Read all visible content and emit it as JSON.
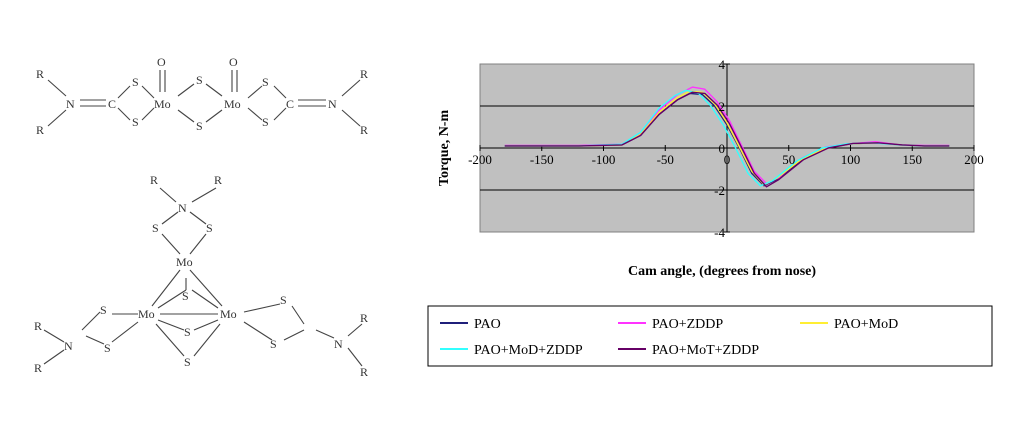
{
  "chemistry": {
    "dimer": {
      "labels": [
        "R",
        "N",
        "C",
        "S",
        "S",
        "Mo",
        "O",
        "S",
        "S",
        "Mo",
        "O",
        "S",
        "S",
        "C",
        "N",
        "R",
        "R",
        "R"
      ]
    },
    "trimer": {
      "labels": [
        "R",
        "R",
        "N",
        "S",
        "S",
        "Mo",
        "S",
        "Mo",
        "Mo",
        "S",
        "S",
        "S",
        "S",
        "N",
        "R",
        "R",
        "S",
        "S",
        "N",
        "R",
        "R"
      ]
    }
  },
  "chart_data": {
    "type": "line",
    "title": "",
    "xlabel": "Cam angle, (degrees from nose)",
    "ylabel": "Torque, N-m",
    "xlim": [
      -200,
      200
    ],
    "ylim": [
      -4,
      4
    ],
    "xticks": [
      -200,
      -150,
      -100,
      -50,
      0,
      50,
      100,
      150,
      200
    ],
    "yticks": [
      -4,
      -2,
      0,
      2,
      4
    ],
    "grid": "horizontal",
    "legend_position": "bottom",
    "series": [
      {
        "name": "PAO",
        "color": "#1f1f7a",
        "points": [
          [
            -180,
            0.1
          ],
          [
            -120,
            0.1
          ],
          [
            -85,
            0.15
          ],
          [
            -70,
            0.6
          ],
          [
            -55,
            1.6
          ],
          [
            -40,
            2.3
          ],
          [
            -30,
            2.6
          ],
          [
            -20,
            2.55
          ],
          [
            -10,
            2.0
          ],
          [
            0,
            1.1
          ],
          [
            10,
            0.0
          ],
          [
            20,
            -1.2
          ],
          [
            30,
            -1.8
          ],
          [
            40,
            -1.5
          ],
          [
            60,
            -0.6
          ],
          [
            80,
            0.0
          ],
          [
            100,
            0.2
          ],
          [
            120,
            0.25
          ],
          [
            140,
            0.15
          ],
          [
            160,
            0.1
          ],
          [
            180,
            0.1
          ]
        ]
      },
      {
        "name": "PAO+ZDDP",
        "color": "#ff33ff",
        "points": [
          [
            -180,
            0.12
          ],
          [
            -120,
            0.12
          ],
          [
            -85,
            0.18
          ],
          [
            -70,
            0.7
          ],
          [
            -55,
            1.8
          ],
          [
            -40,
            2.55
          ],
          [
            -28,
            2.9
          ],
          [
            -18,
            2.8
          ],
          [
            -8,
            2.2
          ],
          [
            2,
            1.3
          ],
          [
            12,
            0.1
          ],
          [
            22,
            -1.1
          ],
          [
            32,
            -1.7
          ],
          [
            42,
            -1.4
          ],
          [
            60,
            -0.5
          ],
          [
            80,
            0.05
          ],
          [
            100,
            0.2
          ],
          [
            120,
            0.3
          ],
          [
            140,
            0.15
          ],
          [
            160,
            0.12
          ],
          [
            180,
            0.12
          ]
        ]
      },
      {
        "name": "PAO+MoD",
        "color": "#ffee33",
        "points": [
          [
            -180,
            0.1
          ],
          [
            -120,
            0.1
          ],
          [
            -85,
            0.15
          ],
          [
            -70,
            0.65
          ],
          [
            -55,
            1.7
          ],
          [
            -40,
            2.4
          ],
          [
            -30,
            2.7
          ],
          [
            -20,
            2.65
          ],
          [
            -10,
            2.1
          ],
          [
            0,
            1.2
          ],
          [
            10,
            0.05
          ],
          [
            20,
            -1.1
          ],
          [
            30,
            -1.75
          ],
          [
            40,
            -1.45
          ],
          [
            60,
            -0.55
          ],
          [
            80,
            0.0
          ],
          [
            100,
            0.2
          ],
          [
            120,
            0.25
          ],
          [
            140,
            0.15
          ],
          [
            160,
            0.1
          ],
          [
            180,
            0.1
          ]
        ]
      },
      {
        "name": "PAO+MoD+ZDDP",
        "color": "#33ffff",
        "points": [
          [
            -180,
            0.1
          ],
          [
            -120,
            0.1
          ],
          [
            -85,
            0.18
          ],
          [
            -70,
            0.75
          ],
          [
            -55,
            1.9
          ],
          [
            -42,
            2.5
          ],
          [
            -33,
            2.75
          ],
          [
            -23,
            2.6
          ],
          [
            -13,
            2.0
          ],
          [
            -3,
            1.1
          ],
          [
            7,
            0.0
          ],
          [
            17,
            -1.2
          ],
          [
            27,
            -1.8
          ],
          [
            37,
            -1.55
          ],
          [
            57,
            -0.6
          ],
          [
            77,
            0.0
          ],
          [
            97,
            0.2
          ],
          [
            117,
            0.25
          ],
          [
            140,
            0.15
          ],
          [
            160,
            0.1
          ],
          [
            180,
            0.1
          ]
        ]
      },
      {
        "name": "PAO+MoT+ZDDP",
        "color": "#660066",
        "points": [
          [
            -180,
            0.1
          ],
          [
            -120,
            0.1
          ],
          [
            -85,
            0.15
          ],
          [
            -70,
            0.6
          ],
          [
            -55,
            1.6
          ],
          [
            -40,
            2.3
          ],
          [
            -28,
            2.65
          ],
          [
            -18,
            2.6
          ],
          [
            -8,
            2.05
          ],
          [
            2,
            1.15
          ],
          [
            12,
            0.0
          ],
          [
            22,
            -1.2
          ],
          [
            32,
            -1.85
          ],
          [
            42,
            -1.5
          ],
          [
            62,
            -0.55
          ],
          [
            82,
            0.0
          ],
          [
            102,
            0.22
          ],
          [
            122,
            0.25
          ],
          [
            142,
            0.15
          ],
          [
            160,
            0.1
          ],
          [
            180,
            0.1
          ]
        ]
      }
    ]
  }
}
